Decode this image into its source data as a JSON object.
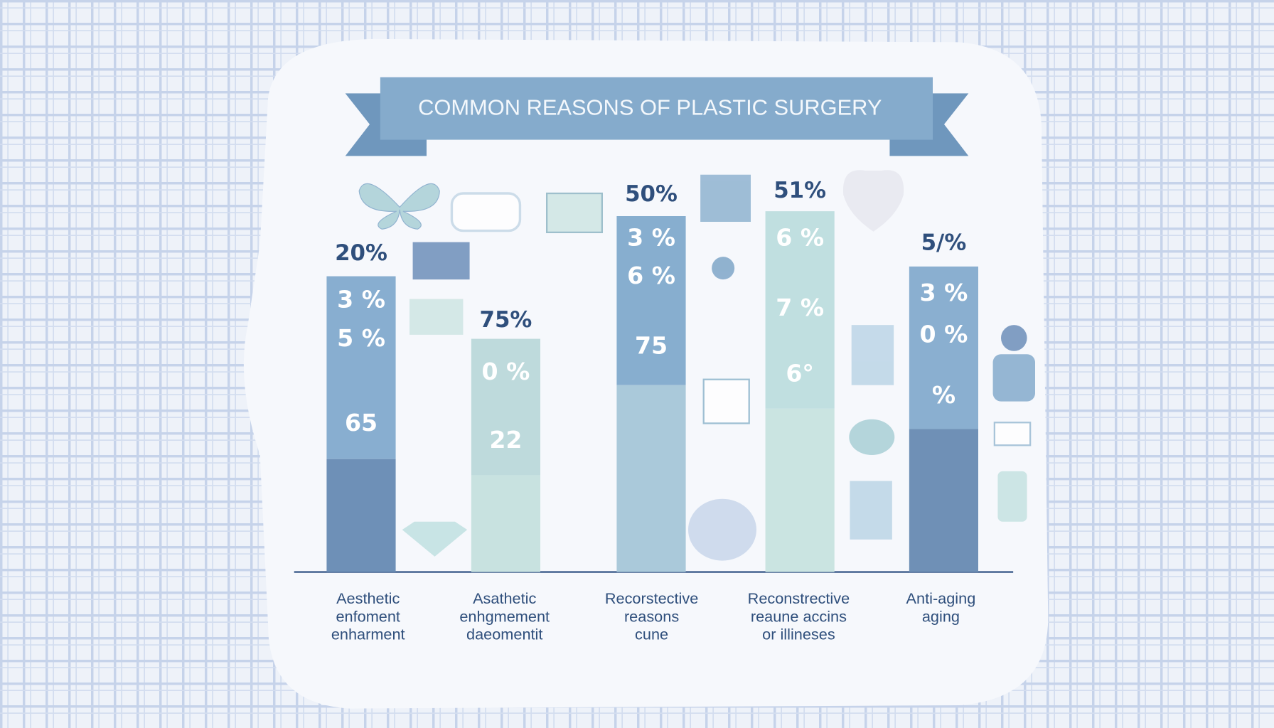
{
  "title": "COMMON REASONS OF PLASTIC SURGERY",
  "bars": [
    {
      "top_label": "20%",
      "segment_labels": [
        "3 %",
        "5 %",
        "65"
      ],
      "category_lines": [
        "Aesthetic",
        "enfoment",
        "enharment"
      ]
    },
    {
      "top_label": "75%",
      "segment_labels": [
        "0 %",
        "22"
      ],
      "category_lines": [
        "Asathetic",
        "enhgmement",
        "daeomentit"
      ]
    },
    {
      "top_label": "50%",
      "segment_labels": [
        "3 %",
        "6 %",
        "75"
      ],
      "category_lines": [
        "Recorstective",
        "reasons",
        "cune"
      ]
    },
    {
      "top_label": "51%",
      "segment_labels": [
        "6 %",
        "7 %",
        "6°"
      ],
      "category_lines": [
        "Reconstrective",
        "reaune accins",
        "or illineses"
      ]
    },
    {
      "top_label": "5/%",
      "segment_labels": [
        "3 %",
        "0 %",
        "%"
      ],
      "category_lines": [
        "Anti-aging",
        "aging"
      ]
    }
  ]
}
